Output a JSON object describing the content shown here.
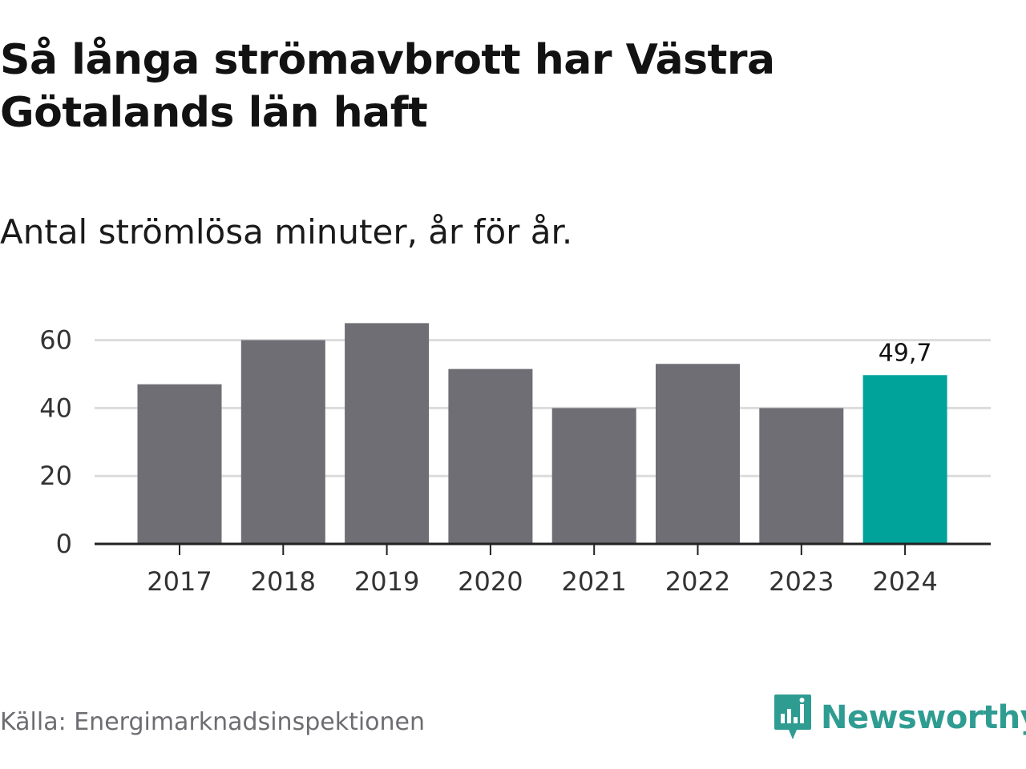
{
  "header": {
    "title": "Så långa strömavbrott har Västra Götalands län haft",
    "subtitle": "Antal strömlösa minuter, år för år."
  },
  "footer": {
    "source": "Källa: Energimarknadsinspektionen",
    "brand": "Newsworthy",
    "brand_icon": "newsworthy-logo-icon"
  },
  "colors": {
    "bar": "#6f6e74",
    "highlight": "#00a39a",
    "brand": "#2f9c92",
    "grid": "#dcdcdc",
    "axis": "#222222"
  },
  "chart_data": {
    "type": "bar",
    "title": "Så långa strömavbrott har Västra Götalands län haft",
    "subtitle": "Antal strömlösa minuter, år för år.",
    "categories": [
      "2017",
      "2018",
      "2019",
      "2020",
      "2021",
      "2022",
      "2023",
      "2024"
    ],
    "values": [
      47,
      60,
      65,
      51.5,
      40,
      53,
      40,
      49.7
    ],
    "highlight_index": 7,
    "data_labels": [
      {
        "index": 7,
        "text": "49,7"
      }
    ],
    "xlabel": "",
    "ylabel": "",
    "yticks": [
      0,
      20,
      40,
      60
    ],
    "ylim": [
      0,
      70
    ],
    "grid": true,
    "legend": false
  }
}
